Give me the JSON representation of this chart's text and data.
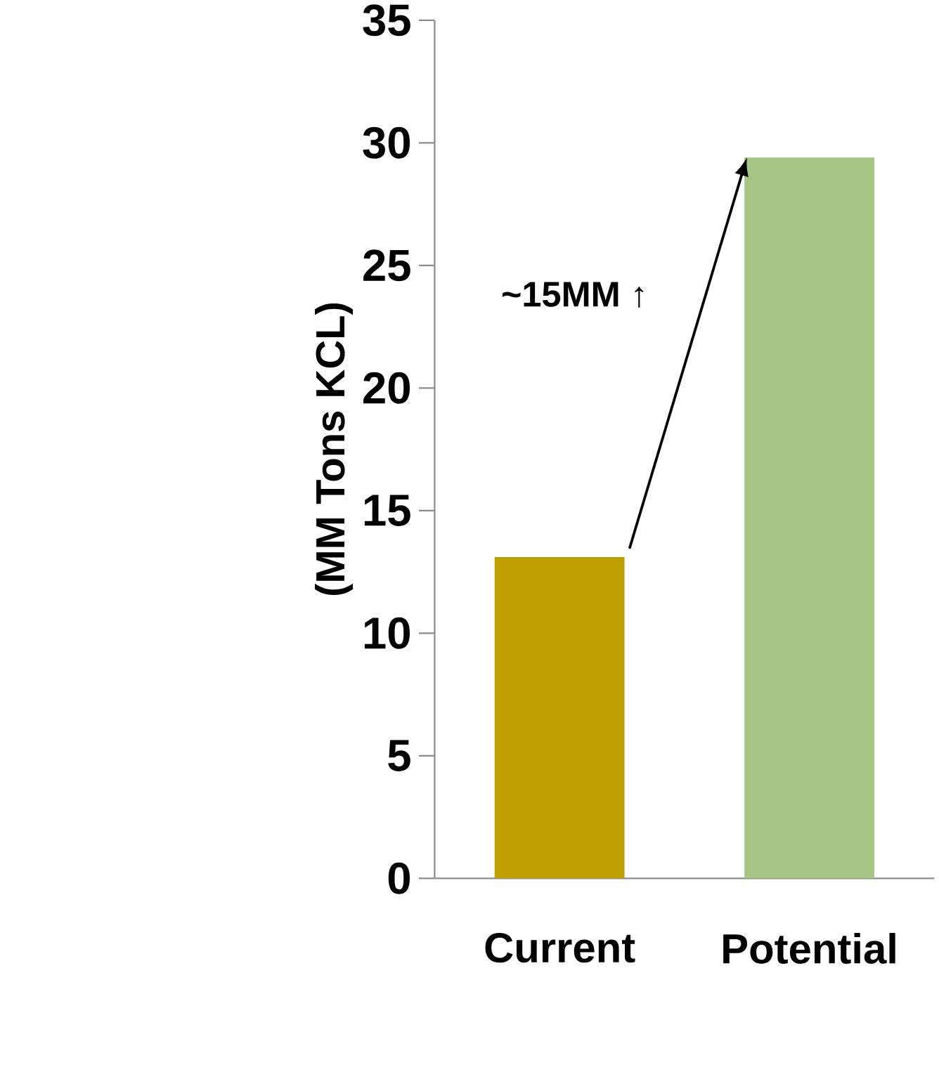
{
  "chart_data": {
    "type": "bar",
    "ylabel": "(MM Tons KCL)",
    "categories": [
      "Current",
      "Potential"
    ],
    "values": [
      13.1,
      29.4
    ],
    "colors": [
      "#bf9e00",
      "#a5c585"
    ],
    "ylim": [
      0,
      35
    ],
    "yticks": [
      0,
      5,
      10,
      15,
      20,
      25,
      30,
      35
    ],
    "annotations": [
      "~15MM ↑"
    ]
  }
}
